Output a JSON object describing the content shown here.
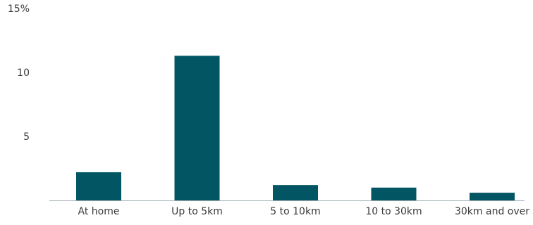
{
  "chart_data": {
    "type": "bar",
    "categories": [
      "At home",
      "Up to 5km",
      "5 to 10km",
      "10 to 30km",
      "30km and over"
    ],
    "values": [
      2.2,
      11.3,
      1.2,
      1.0,
      0.6
    ],
    "y_ticks": [
      {
        "value": 5,
        "label": "5"
      },
      {
        "value": 10,
        "label": "10"
      },
      {
        "value": 15,
        "label": "15%"
      }
    ],
    "ylim": [
      0,
      15
    ],
    "grid": false,
    "colors": {
      "bar": "#025663",
      "axis": "#a6b3b8",
      "text": "#3a3a3a"
    }
  }
}
